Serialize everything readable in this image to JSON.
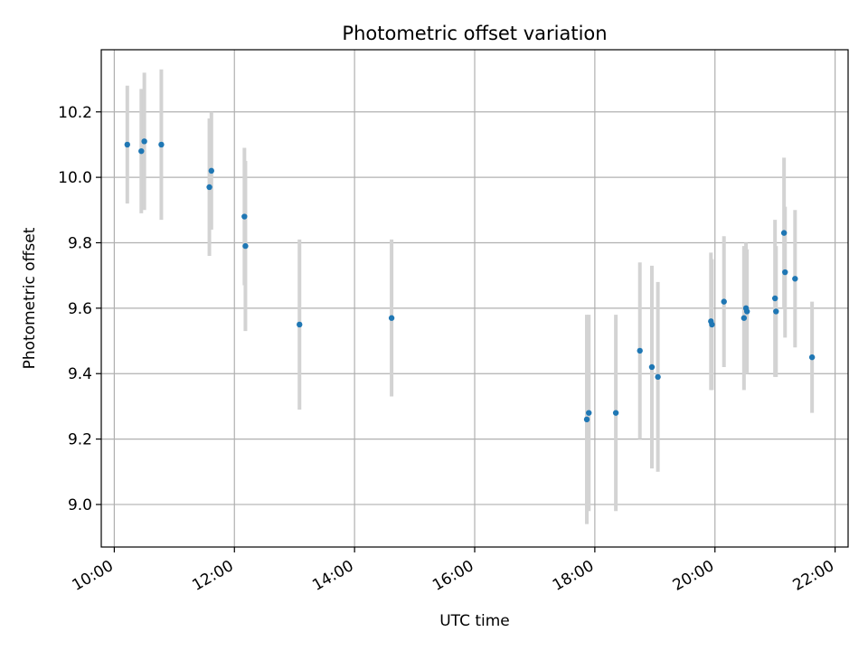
{
  "chart_data": {
    "type": "scatter",
    "title": "Photometric offset variation",
    "xlabel": "UTC time",
    "ylabel": "Photometric offset",
    "xlim": [
      "09:47",
      "22:13"
    ],
    "ylim": [
      8.87,
      10.39
    ],
    "xticks": [
      "10:00",
      "12:00",
      "14:00",
      "16:00",
      "18:00",
      "20:00",
      "22:00"
    ],
    "yticks": [
      "9.0",
      "9.2",
      "9.4",
      "9.6",
      "9.8",
      "10.0",
      "10.2"
    ],
    "grid": true,
    "colors": {
      "points": "#1f77b4",
      "errorbars": "#d3d3d3",
      "grid": "#b0b0b0"
    },
    "points": [
      {
        "x": "10:13",
        "y": 10.1,
        "err": 0.18
      },
      {
        "x": "10:27",
        "y": 10.08,
        "err": 0.19
      },
      {
        "x": "10:30",
        "y": 10.11,
        "err": 0.21
      },
      {
        "x": "10:47",
        "y": 10.1,
        "err": 0.23
      },
      {
        "x": "11:35",
        "y": 9.97,
        "err": 0.21
      },
      {
        "x": "11:37",
        "y": 10.02,
        "err": 0.18
      },
      {
        "x": "12:10",
        "y": 9.88,
        "err": 0.21
      },
      {
        "x": "12:11",
        "y": 9.79,
        "err": 0.26
      },
      {
        "x": "13:05",
        "y": 9.55,
        "err": 0.26
      },
      {
        "x": "14:37",
        "y": 9.57,
        "err": 0.24
      },
      {
        "x": "17:52",
        "y": 9.26,
        "err": 0.32
      },
      {
        "x": "17:54",
        "y": 9.28,
        "err": 0.3
      },
      {
        "x": "18:21",
        "y": 9.28,
        "err": 0.3
      },
      {
        "x": "18:45",
        "y": 9.47,
        "err": 0.27
      },
      {
        "x": "18:57",
        "y": 9.42,
        "err": 0.31
      },
      {
        "x": "19:03",
        "y": 9.39,
        "err": 0.29
      },
      {
        "x": "19:56",
        "y": 9.56,
        "err": 0.21
      },
      {
        "x": "19:57",
        "y": 9.55,
        "err": 0.2
      },
      {
        "x": "20:09",
        "y": 9.62,
        "err": 0.2
      },
      {
        "x": "20:29",
        "y": 9.57,
        "err": 0.22
      },
      {
        "x": "20:31",
        "y": 9.6,
        "err": 0.2
      },
      {
        "x": "20:32",
        "y": 9.59,
        "err": 0.19
      },
      {
        "x": "21:00",
        "y": 9.63,
        "err": 0.24
      },
      {
        "x": "21:01",
        "y": 9.59,
        "err": 0.2
      },
      {
        "x": "21:09",
        "y": 9.83,
        "err": 0.23
      },
      {
        "x": "21:10",
        "y": 9.71,
        "err": 0.2
      },
      {
        "x": "21:20",
        "y": 9.69,
        "err": 0.21
      },
      {
        "x": "21:37",
        "y": 9.45,
        "err": 0.17
      }
    ]
  }
}
